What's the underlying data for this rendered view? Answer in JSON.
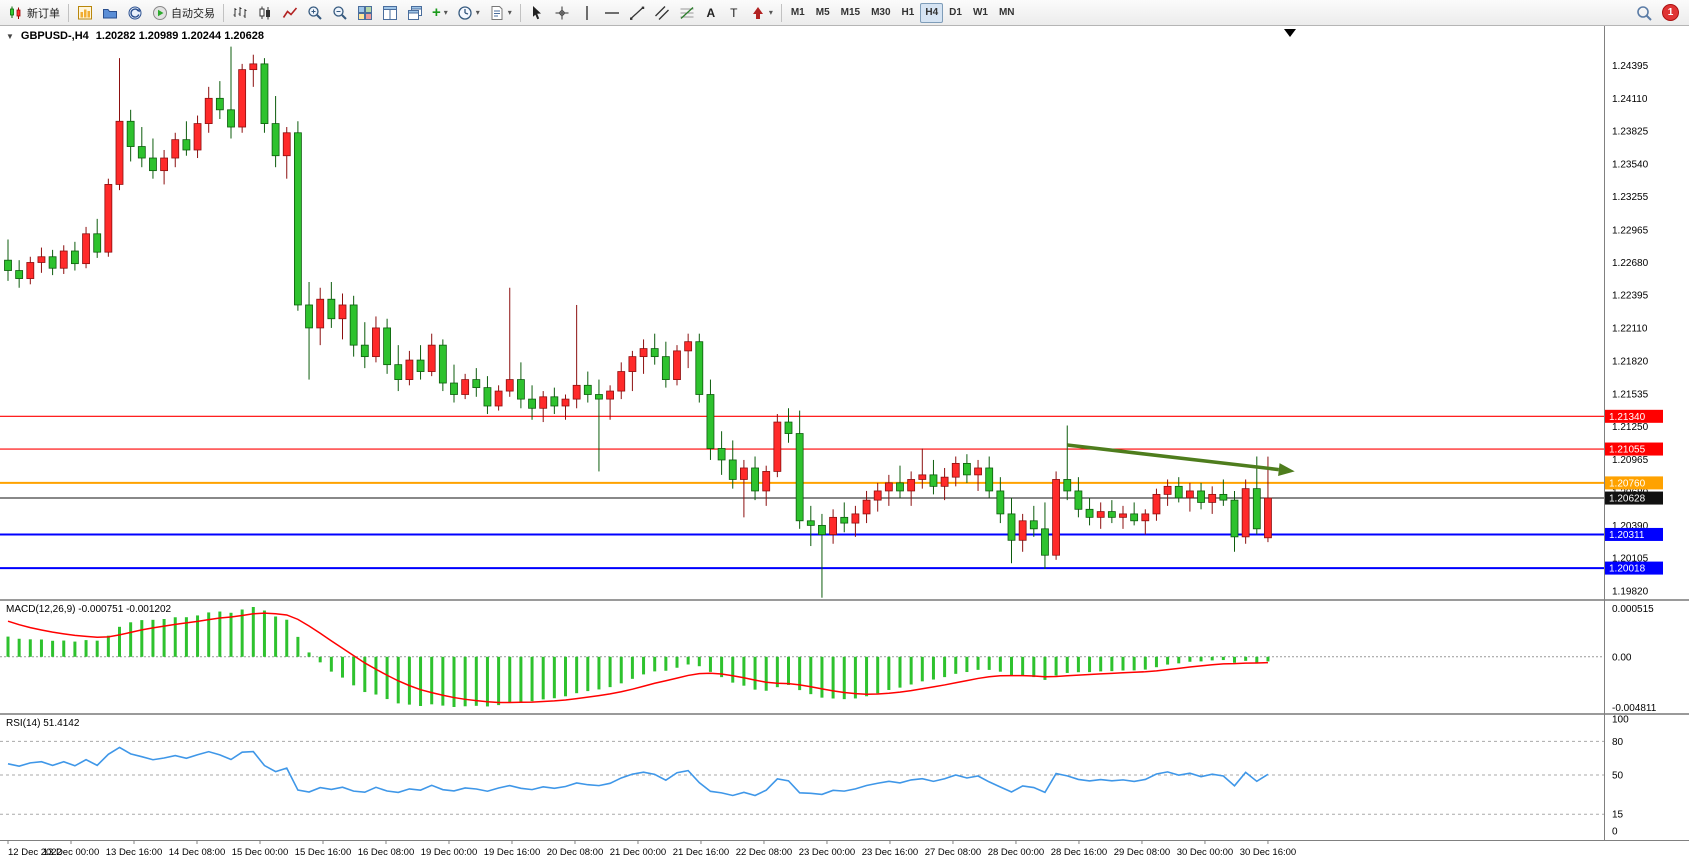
{
  "toolbar": {
    "new_order_label": "新订单",
    "autotrading_label": "自动交易",
    "timeframes": [
      "M1",
      "M5",
      "M15",
      "M30",
      "H1",
      "H4",
      "D1",
      "W1",
      "MN"
    ],
    "active_timeframe": "H4",
    "notification_count": "1"
  },
  "chart": {
    "symbol_title": "GBPUSD-,H4",
    "ohlc_text": "1.20282 1.20989 1.20244 1.20628",
    "macd_label": "MACD(12,26,9) -0.000751 -0.001202",
    "rsi_label": "RSI(14) 51.4142"
  },
  "chart_data": {
    "type": "candlestick",
    "symbol": "GBPUSD-",
    "timeframe": "H4",
    "colors": {
      "bull": "#ff2a2a",
      "bull_border": "#8c0f0f",
      "bear": "#2ec22e",
      "bear_border": "#0c5c0c",
      "macd_hist": "#2ec22e",
      "macd_signal": "#ff0000",
      "rsi_line": "#3f97e8",
      "arrow": "#4e7d1d"
    },
    "price_axis": {
      "max": 1.2474,
      "min": 1.1974,
      "labels": [
        "1.24395",
        "1.24110",
        "1.23825",
        "1.23540",
        "1.23255",
        "1.22965",
        "1.22680",
        "1.22395",
        "1.22110",
        "1.21820",
        "1.21535",
        "1.21250",
        "1.20965",
        "1.20680",
        "1.20390",
        "1.20105",
        "1.19820"
      ]
    },
    "price_lines": [
      {
        "price": 1.2134,
        "label": "1.21340",
        "color": "#ff0000",
        "width": 1.2
      },
      {
        "price": 1.21055,
        "label": "1.21055",
        "color": "#ff0000",
        "width": 1.2
      },
      {
        "price": 1.2076,
        "label": "1.20760",
        "color": "#ffa200",
        "width": 2
      },
      {
        "price": 1.20628,
        "label": "1.20628",
        "color": "#111111",
        "width": 1
      },
      {
        "price": 1.20311,
        "label": "1.20311",
        "color": "#0000ff",
        "width": 2
      },
      {
        "price": 1.20018,
        "label": "1.20018",
        "color": "#0000ff",
        "width": 2
      }
    ],
    "time_labels": [
      "12 Dec 2022",
      "13 Dec 00:00",
      "13 Dec 16:00",
      "14 Dec 08:00",
      "15 Dec 00:00",
      "15 Dec 16:00",
      "16 Dec 08:00",
      "19 Dec 00:00",
      "19 Dec 16:00",
      "20 Dec 08:00",
      "21 Dec 00:00",
      "21 Dec 16:00",
      "22 Dec 08:00",
      "23 Dec 00:00",
      "23 Dec 16:00",
      "27 Dec 08:00",
      "28 Dec 00:00",
      "28 Dec 16:00",
      "29 Dec 08:00",
      "30 Dec 00:00",
      "30 Dec 16:00"
    ],
    "macd": {
      "params": "12,26,9",
      "value_main": "-0.000751",
      "value_signal": "-0.001202",
      "axis_top": "0.000515",
      "axis_zero": "0.00",
      "axis_bottom": "-0.004811"
    },
    "rsi": {
      "params": "14",
      "value": "51.4142",
      "levels": [
        "100",
        "80",
        "50",
        "15",
        "0"
      ],
      "dashed_levels": [
        80,
        50,
        15
      ]
    },
    "annotation_arrow": {
      "from_bar": 95,
      "from_price": 1.2109,
      "to_bar": 115.4,
      "to_price": 1.2086
    },
    "candles": [
      [
        1.227,
        1.2288,
        1.2252,
        1.2261
      ],
      [
        1.2261,
        1.227,
        1.2246,
        1.2254
      ],
      [
        1.2254,
        1.2273,
        1.2249,
        1.2268
      ],
      [
        1.2268,
        1.2281,
        1.2259,
        1.2273
      ],
      [
        1.2273,
        1.2279,
        1.2257,
        1.2263
      ],
      [
        1.2263,
        1.2283,
        1.2258,
        1.2278
      ],
      [
        1.2278,
        1.2286,
        1.2261,
        1.2267
      ],
      [
        1.2267,
        1.2299,
        1.2263,
        1.2293
      ],
      [
        1.2293,
        1.2306,
        1.2272,
        1.2277
      ],
      [
        1.2277,
        1.2341,
        1.2273,
        1.2336
      ],
      [
        1.2336,
        1.2446,
        1.2331,
        1.2391
      ],
      [
        1.2391,
        1.2401,
        1.2356,
        1.2369
      ],
      [
        1.2369,
        1.2386,
        1.2351,
        1.2359
      ],
      [
        1.2359,
        1.2376,
        1.2341,
        1.2348
      ],
      [
        1.2348,
        1.2366,
        1.2336,
        1.2359
      ],
      [
        1.2359,
        1.2381,
        1.2351,
        1.2375
      ],
      [
        1.2375,
        1.2391,
        1.2361,
        1.2366
      ],
      [
        1.2366,
        1.2396,
        1.2359,
        1.2389
      ],
      [
        1.2389,
        1.2421,
        1.2381,
        1.2411
      ],
      [
        1.2411,
        1.2426,
        1.2393,
        1.2401
      ],
      [
        1.2401,
        1.2456,
        1.2376,
        1.2386
      ],
      [
        1.2386,
        1.2441,
        1.2381,
        1.2436
      ],
      [
        1.2436,
        1.2449,
        1.2421,
        1.2441
      ],
      [
        1.2441,
        1.2446,
        1.2381,
        1.2389
      ],
      [
        1.2389,
        1.2413,
        1.2351,
        1.2361
      ],
      [
        1.2361,
        1.2386,
        1.2341,
        1.2381
      ],
      [
        1.2381,
        1.2391,
        1.2226,
        1.2231
      ],
      [
        1.2231,
        1.2251,
        1.2166,
        1.2211
      ],
      [
        1.2211,
        1.2246,
        1.2196,
        1.2236
      ],
      [
        1.2236,
        1.2251,
        1.2211,
        1.2219
      ],
      [
        1.2219,
        1.2241,
        1.2201,
        1.2231
      ],
      [
        1.2231,
        1.2239,
        1.2186,
        1.2196
      ],
      [
        1.2196,
        1.2216,
        1.2176,
        1.2186
      ],
      [
        1.2186,
        1.2221,
        1.2181,
        1.2211
      ],
      [
        1.2211,
        1.2219,
        1.2171,
        1.2179
      ],
      [
        1.2179,
        1.2196,
        1.2156,
        1.2166
      ],
      [
        1.2166,
        1.2191,
        1.2161,
        1.2183
      ],
      [
        1.2183,
        1.2196,
        1.2166,
        1.2173
      ],
      [
        1.2173,
        1.2206,
        1.2169,
        1.2196
      ],
      [
        1.2196,
        1.2201,
        1.2156,
        1.2163
      ],
      [
        1.2163,
        1.2179,
        1.2146,
        1.2153
      ],
      [
        1.2153,
        1.2171,
        1.2149,
        1.2166
      ],
      [
        1.2166,
        1.2176,
        1.2151,
        1.2159
      ],
      [
        1.2159,
        1.2169,
        1.2136,
        1.2143
      ],
      [
        1.2143,
        1.2161,
        1.2139,
        1.2156
      ],
      [
        1.2156,
        1.2246,
        1.2151,
        1.2166
      ],
      [
        1.2166,
        1.2181,
        1.2141,
        1.2149
      ],
      [
        1.2149,
        1.2161,
        1.2131,
        1.2141
      ],
      [
        1.2141,
        1.2156,
        1.2129,
        1.2151
      ],
      [
        1.2151,
        1.2159,
        1.2136,
        1.2143
      ],
      [
        1.2143,
        1.2153,
        1.2131,
        1.2149
      ],
      [
        1.2149,
        1.2231,
        1.2141,
        1.2161
      ],
      [
        1.2161,
        1.2173,
        1.2146,
        1.2153
      ],
      [
        1.2153,
        1.2166,
        1.2086,
        1.2149
      ],
      [
        1.2149,
        1.2161,
        1.2131,
        1.2156
      ],
      [
        1.2156,
        1.2181,
        1.2149,
        1.2173
      ],
      [
        1.2173,
        1.2191,
        1.2156,
        1.2186
      ],
      [
        1.2186,
        1.2201,
        1.2171,
        1.2193
      ],
      [
        1.2193,
        1.2206,
        1.2179,
        1.2186
      ],
      [
        1.2186,
        1.2199,
        1.2159,
        1.2166
      ],
      [
        1.2166,
        1.2196,
        1.2161,
        1.2191
      ],
      [
        1.2191,
        1.2206,
        1.2176,
        1.2199
      ],
      [
        1.2199,
        1.2206,
        1.2146,
        1.2153
      ],
      [
        1.2153,
        1.2166,
        1.2096,
        1.2106
      ],
      [
        1.2106,
        1.2121,
        1.2083,
        1.2096
      ],
      [
        1.2096,
        1.2113,
        1.2071,
        1.2079
      ],
      [
        1.2079,
        1.2096,
        1.2046,
        1.2089
      ],
      [
        1.2089,
        1.2099,
        1.2061,
        1.2069
      ],
      [
        1.2069,
        1.2091,
        1.2056,
        1.2086
      ],
      [
        1.2086,
        1.2136,
        1.2081,
        1.2129
      ],
      [
        1.2129,
        1.2141,
        1.2111,
        1.2119
      ],
      [
        1.2119,
        1.2139,
        1.2036,
        1.2043
      ],
      [
        1.2043,
        1.2056,
        1.2021,
        1.2039
      ],
      [
        1.2039,
        1.2049,
        1.1976,
        1.2031
      ],
      [
        1.2031,
        1.2053,
        1.2023,
        1.2046
      ],
      [
        1.2046,
        1.2059,
        1.2033,
        1.2041
      ],
      [
        1.2041,
        1.2056,
        1.2029,
        1.2049
      ],
      [
        1.2049,
        1.2069,
        1.2041,
        1.2061
      ],
      [
        1.2061,
        1.2076,
        1.2051,
        1.2069
      ],
      [
        1.2069,
        1.2083,
        1.2056,
        1.2076
      ],
      [
        1.2076,
        1.2091,
        1.2063,
        1.2069
      ],
      [
        1.2069,
        1.2086,
        1.2056,
        1.2079
      ],
      [
        1.2079,
        1.2106,
        1.2071,
        1.2083
      ],
      [
        1.2083,
        1.2096,
        1.2066,
        1.2073
      ],
      [
        1.2073,
        1.2089,
        1.2061,
        1.2081
      ],
      [
        1.2081,
        1.2099,
        1.2073,
        1.2093
      ],
      [
        1.2093,
        1.2101,
        1.2076,
        1.2083
      ],
      [
        1.2083,
        1.2096,
        1.2069,
        1.2089
      ],
      [
        1.2089,
        1.2099,
        1.2063,
        1.2069
      ],
      [
        1.2069,
        1.2081,
        1.2041,
        1.2049
      ],
      [
        1.2049,
        1.2063,
        1.2006,
        1.2026
      ],
      [
        1.2026,
        1.2049,
        1.2016,
        1.2043
      ],
      [
        1.2043,
        1.2056,
        1.2029,
        1.2036
      ],
      [
        1.2036,
        1.2059,
        1.2001,
        1.2013
      ],
      [
        1.2013,
        1.2086,
        1.2009,
        1.2079
      ],
      [
        1.2079,
        1.2126,
        1.2061,
        1.2069
      ],
      [
        1.2069,
        1.2081,
        1.2046,
        1.2053
      ],
      [
        1.2053,
        1.2063,
        1.2039,
        1.2046
      ],
      [
        1.2046,
        1.2059,
        1.2036,
        1.2051
      ],
      [
        1.2051,
        1.2061,
        1.2041,
        1.2046
      ],
      [
        1.2046,
        1.2056,
        1.2036,
        1.2049
      ],
      [
        1.2049,
        1.2059,
        1.2039,
        1.2043
      ],
      [
        1.2043,
        1.2053,
        1.2031,
        1.2049
      ],
      [
        1.2049,
        1.2071,
        1.2043,
        1.2066
      ],
      [
        1.2066,
        1.2079,
        1.2056,
        1.2073
      ],
      [
        1.2073,
        1.2081,
        1.2059,
        1.2063
      ],
      [
        1.2063,
        1.2076,
        1.2051,
        1.2069
      ],
      [
        1.2069,
        1.2076,
        1.2053,
        1.2059
      ],
      [
        1.2059,
        1.2073,
        1.2049,
        1.2066
      ],
      [
        1.2066,
        1.2079,
        1.2056,
        1.2061
      ],
      [
        1.2061,
        1.2069,
        1.2016,
        1.2029
      ],
      [
        1.2029,
        1.2079,
        1.2023,
        1.2071
      ],
      [
        1.2071,
        1.2099,
        1.2031,
        1.2036
      ],
      [
        1.20282,
        1.20989,
        1.20244,
        1.20628
      ]
    ]
  }
}
